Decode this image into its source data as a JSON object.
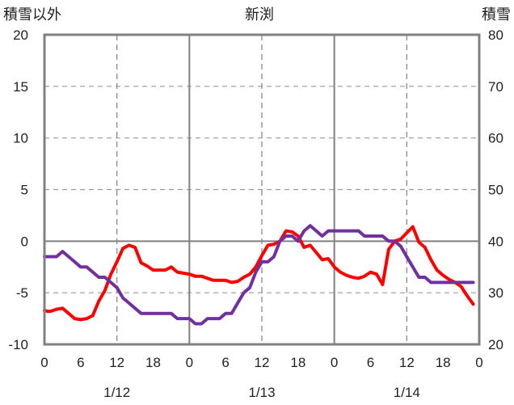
{
  "chart_data": {
    "type": "line",
    "title": "新渕",
    "ylabel": "積雪以外",
    "y2label": "積雪",
    "ylim": [
      -10,
      20
    ],
    "y2lim": [
      20,
      80
    ],
    "yticks": [
      "20",
      "15",
      "10",
      "5",
      "0",
      "-5",
      "-10"
    ],
    "y2ticks": [
      "80",
      "70",
      "60",
      "50",
      "40",
      "30",
      "20"
    ],
    "xlim": [
      0,
      72
    ],
    "xticks": [
      "0",
      "6",
      "12",
      "18",
      "0",
      "6",
      "12",
      "18",
      "0",
      "6",
      "12",
      "18",
      "0"
    ],
    "date_labels": [
      "1/12",
      "1/13",
      "1/14"
    ],
    "grid": true,
    "series": [
      {
        "color": "#ff0000",
        "axis": "left",
        "x": [
          0,
          0.5,
          1,
          2,
          3,
          4,
          5,
          6,
          7,
          8,
          9,
          10,
          11,
          12,
          13,
          14,
          15,
          16,
          17,
          18,
          19,
          20,
          21,
          22,
          23,
          24,
          25,
          26,
          27,
          28,
          29,
          30,
          31,
          32,
          33,
          34,
          35,
          36,
          37,
          38,
          39,
          40,
          41,
          42,
          43,
          44,
          45,
          46,
          47,
          48,
          49,
          50,
          51,
          52,
          53,
          54,
          55,
          56,
          57,
          58,
          59,
          60,
          61,
          62,
          63,
          64,
          65,
          66,
          67,
          68,
          69,
          70,
          71
        ],
        "values": [
          -6.7,
          -6.8,
          -6.8,
          -6.6,
          -6.5,
          -7.0,
          -7.5,
          -7.6,
          -7.5,
          -7.2,
          -5.8,
          -4.8,
          -3.2,
          -2.0,
          -0.7,
          -0.4,
          -0.6,
          -2.1,
          -2.4,
          -2.8,
          -2.8,
          -2.8,
          -2.5,
          -3.0,
          -3.1,
          -3.2,
          -3.4,
          -3.4,
          -3.6,
          -3.8,
          -3.8,
          -3.8,
          -4.0,
          -3.9,
          -3.5,
          -3.2,
          -2.5,
          -1.4,
          -0.4,
          -0.3,
          0.0,
          1.0,
          0.9,
          0.5,
          -0.6,
          -0.4,
          -1.1,
          -1.8,
          -1.7,
          -2.5,
          -3.0,
          -3.3,
          -3.5,
          -3.6,
          -3.4,
          -3.0,
          -3.2,
          -4.2,
          -0.8,
          0.0,
          0.2,
          0.8,
          1.4,
          -0.1,
          -0.6,
          -1.8,
          -2.8,
          -3.3,
          -3.7,
          -4.0,
          -4.4,
          -5.3,
          -6.1
        ]
      },
      {
        "color": "#7030a0",
        "axis": "right",
        "x": [
          0,
          1,
          2,
          3,
          4,
          5,
          6,
          7,
          8,
          9,
          10,
          11,
          12,
          13,
          14,
          15,
          16,
          17,
          18,
          19,
          20,
          21,
          22,
          23,
          24,
          25,
          26,
          27,
          28,
          29,
          30,
          31,
          32,
          33,
          34,
          35,
          36,
          37,
          38,
          39,
          40,
          41,
          42,
          43,
          44,
          45,
          46,
          47,
          48,
          49,
          50,
          51,
          52,
          53,
          54,
          55,
          56,
          57,
          58,
          59,
          60,
          61,
          62,
          63,
          64,
          65,
          66,
          67,
          68,
          69,
          70,
          71
        ],
        "values": [
          37,
          37,
          37,
          38,
          37,
          36,
          35,
          35,
          34,
          33,
          33,
          32,
          31,
          29,
          28,
          27,
          26,
          26,
          26,
          26,
          26,
          26,
          25,
          25,
          25,
          24,
          24,
          25,
          25,
          25,
          26,
          26,
          28,
          30,
          31,
          34,
          36,
          36,
          37,
          40,
          41,
          41,
          40,
          42,
          43,
          42,
          41,
          42,
          42,
          42,
          42,
          42,
          42,
          41,
          41,
          41,
          41,
          40,
          40,
          39,
          37,
          35,
          33,
          33,
          32,
          32,
          32,
          32,
          32,
          32,
          32,
          32
        ]
      }
    ]
  }
}
